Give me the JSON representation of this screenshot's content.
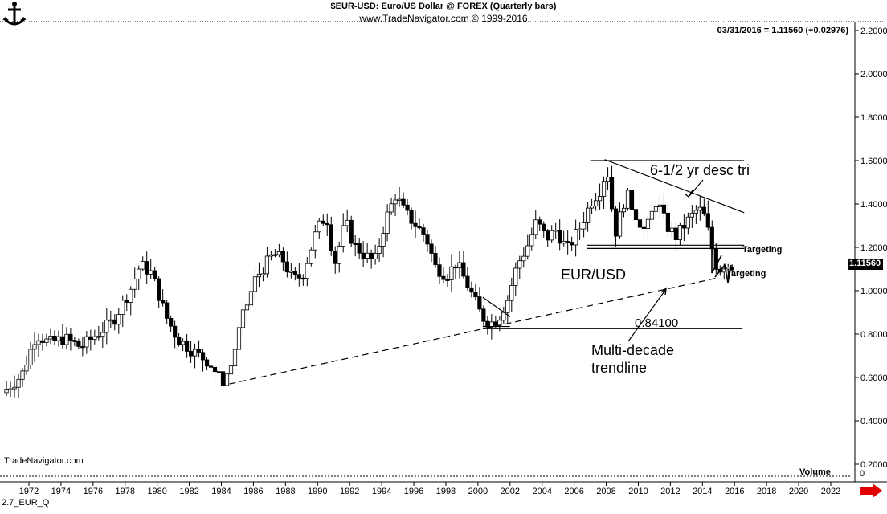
{
  "header": {
    "title": "$EUR-USD:  Euro/US Dollar @ FOREX  (Quarterly bars)",
    "subtitle": "www.TradeNavigator.com © 1999-2016",
    "last_quote": "03/31/2016 = 1.11560 (+0.02976)"
  },
  "footer": {
    "brand": "TradeNavigator.com",
    "chart_name": "2.7_EUR_Q",
    "volume_label": "Volume",
    "volume_value": "0"
  },
  "annotations": {
    "desc_triangle": "6-1/2 yr desc tri",
    "symbol": "EUR/USD",
    "level": "0.84100",
    "trendline_line1": "Multi-decade",
    "trendline_line2": "trendline",
    "target1": "Targeting",
    "target2": "Targeting"
  },
  "price_tag": "1.11560",
  "colors": {
    "up_candle": "#ffffff",
    "down_candle": "#000000",
    "price_tag_bg": "#000000",
    "arrow": "#e00000"
  },
  "chart_data": {
    "type": "candlestick",
    "title": "$EUR-USD:  Euro/US Dollar @ FOREX  (Quarterly bars)",
    "xlabel": "",
    "ylabel": "",
    "xlim": [
      1970.6,
      2023.2
    ],
    "ylim": [
      0.1,
      2.25
    ],
    "y_axis_side": "right",
    "grid": false,
    "x_ticks": [
      "1972",
      "1974",
      "1976",
      "1978",
      "1980",
      "1982",
      "1984",
      "1986",
      "1988",
      "1990",
      "1992",
      "1994",
      "1996",
      "1998",
      "2000",
      "2002",
      "2004",
      "2006",
      "2008",
      "2010",
      "2012",
      "2014",
      "2016",
      "2018",
      "2020",
      "2022"
    ],
    "y_ticks": [
      "0.20000",
      "0.40000",
      "0.60000",
      "0.80000",
      "1.00000",
      "1.20000",
      "1.40000",
      "1.60000",
      "1.80000",
      "2.00000",
      "2.20000"
    ],
    "series": [
      {
        "x": [
          1970.6,
          1971.8,
          1972.7,
          1973.5,
          1974.5,
          1975.5,
          1976.5,
          1977.5,
          1978.6,
          1979.2,
          1979.9,
          1980.8,
          1981.5,
          1982.5,
          1983.5,
          1984.3,
          1984.8,
          1985.5,
          1986.4,
          1987.5,
          1988.1,
          1988.7,
          1989.3,
          1990.2,
          1990.8,
          1991.3,
          1992.0,
          1992.5,
          1993.1,
          1993.8,
          1994.5,
          1995.1,
          1995.7,
          1996.4,
          1997.0,
          1997.6,
          1998.3,
          1998.9,
          1999.7,
          2000.5,
          2001.0,
          2001.5,
          2002.1,
          2002.7,
          2003.3,
          2003.9,
          2004.5,
          2005.1,
          2005.8,
          2006.6,
          2007.3,
          2007.9,
          2008.3,
          2008.8,
          2009.5,
          2010.1,
          2010.7,
          2011.4,
          2012.0,
          2012.6,
          2013.3,
          2014.0,
          2014.4,
          2014.8,
          2015.2,
          2015.6,
          2016.0
        ],
        "y": [
          0.53,
          0.61,
          0.8,
          0.76,
          0.78,
          0.74,
          0.8,
          0.86,
          1.01,
          1.12,
          1.08,
          0.88,
          0.78,
          0.72,
          0.67,
          0.58,
          0.64,
          0.86,
          1.06,
          1.17,
          1.14,
          1.05,
          1.07,
          1.28,
          1.35,
          1.12,
          1.32,
          1.21,
          1.17,
          1.13,
          1.33,
          1.44,
          1.36,
          1.3,
          1.25,
          1.11,
          1.07,
          1.13,
          1.01,
          0.88,
          0.85,
          0.87,
          0.96,
          1.12,
          1.2,
          1.32,
          1.24,
          1.28,
          1.19,
          1.29,
          1.41,
          1.47,
          1.57,
          1.26,
          1.45,
          1.35,
          1.27,
          1.42,
          1.3,
          1.25,
          1.32,
          1.38,
          1.34,
          1.21,
          1.09,
          1.12,
          1.116
        ]
      }
    ],
    "lines": [
      {
        "label": "Multi-decade trendline",
        "x": [
          1984.5,
          2015.0
        ],
        "y": [
          0.57,
          1.06
        ],
        "style": "dashed"
      },
      {
        "label": "6-1/2 yr desc tri upper",
        "x": [
          2007.9,
          2016.6
        ],
        "y": [
          1.605,
          1.36
        ]
      },
      {
        "label": "desc tri lower",
        "x": [
          2006.8,
          2016.6
        ],
        "y": [
          1.21,
          1.21
        ]
      },
      {
        "x": [
          2007.0,
          2016.6
        ],
        "y": [
          1.6,
          1.6
        ]
      },
      {
        "x": [
          2006.8,
          2016.6
        ],
        "y": [
          1.195,
          1.195
        ]
      },
      {
        "label": "0.84100",
        "x": [
          2000.3,
          2016.5
        ],
        "y": [
          0.825,
          0.825
        ]
      },
      {
        "x": [
          2000.3,
          2002.0
        ],
        "y": [
          0.835,
          0.835
        ]
      },
      {
        "x": [
          2000.3,
          2002.0
        ],
        "y": [
          0.97,
          0.88
        ]
      }
    ],
    "last_value": 1.1156,
    "last_change": 0.02976
  }
}
